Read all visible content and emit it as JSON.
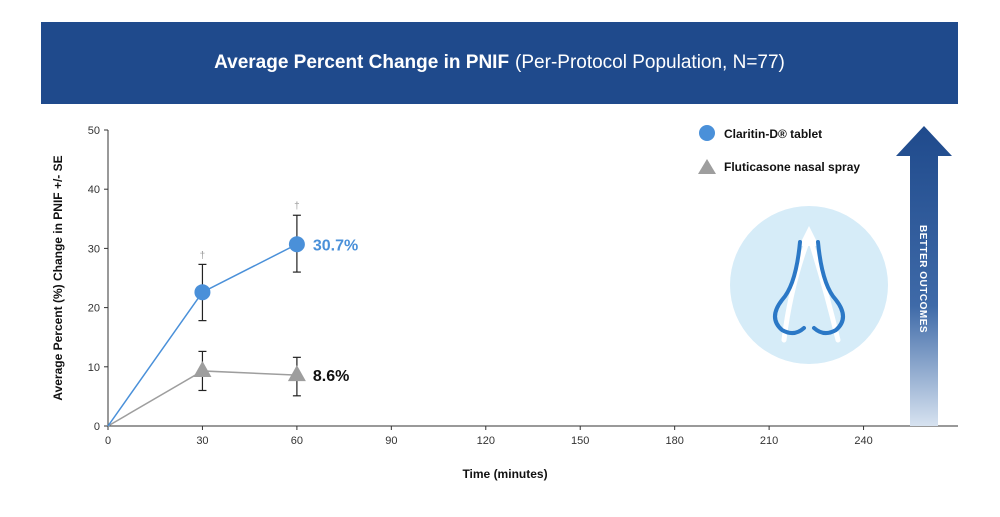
{
  "banner": {
    "title_bold": "Average Percent Change in PNIF",
    "title_light": "(Per-Protocol Population, N=77)"
  },
  "chart_data": {
    "type": "line",
    "title": "Average Percent Change in PNIF (Per-Protocol Population, N=77)",
    "xlabel": "Time (minutes)",
    "ylabel": "Average Percent (%) Change in PNIF +/- SE",
    "xlim": [
      0,
      270
    ],
    "ylim": [
      0,
      50
    ],
    "x_ticks": [
      0,
      30,
      60,
      90,
      120,
      150,
      180,
      210,
      240
    ],
    "y_ticks": [
      0,
      10,
      20,
      30,
      40,
      50
    ],
    "legend_position": "top-right",
    "series": [
      {
        "name": "Claritin-D® tablet",
        "color": "#4a90d9",
        "marker": "circle",
        "x": [
          0,
          30,
          60
        ],
        "y": [
          0,
          22.6,
          30.7
        ],
        "error_low": [
          null,
          17.8,
          26.0
        ],
        "error_high": [
          null,
          27.3,
          35.6
        ],
        "end_label": "30.7%",
        "significance_marks": [
          "",
          "†",
          "†"
        ]
      },
      {
        "name": "Fluticasone nasal spray",
        "color": "#9e9e9e",
        "marker": "triangle",
        "x": [
          0,
          30,
          60
        ],
        "y": [
          0,
          9.3,
          8.6
        ],
        "error_low": [
          null,
          6.0,
          5.1
        ],
        "error_high": [
          null,
          12.6,
          11.6
        ],
        "end_label": "8.6%"
      }
    ]
  },
  "side_arrow": {
    "label": "BETTER OUTCOMES",
    "color": "#1f4a8c"
  },
  "icon": {
    "name": "nose-icon",
    "circle_color": "#d6ecf8",
    "line_color": "#2b78c6"
  }
}
